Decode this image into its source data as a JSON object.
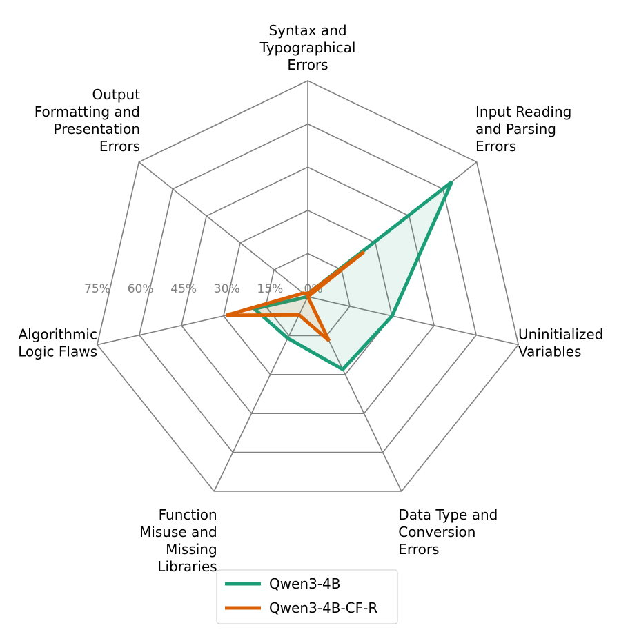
{
  "chart_data": {
    "type": "radar",
    "axes": [
      [
        "Syntax and",
        "Typographical",
        "Errors"
      ],
      [
        "Input Reading",
        "and Parsing",
        "Errors"
      ],
      [
        "Uninitialized",
        "Variables"
      ],
      [
        "Data Type and",
        "Conversion",
        "Errors"
      ],
      [
        "Function",
        "Misuse and",
        "Missing",
        "Libraries"
      ],
      [
        "Algorithmic",
        "Logic Flaws"
      ],
      [
        "Output",
        "Formatting and",
        "Presentation",
        "Errors"
      ]
    ],
    "rlim": [
      0,
      75
    ],
    "ticks": [
      0,
      15,
      30,
      45,
      60,
      75
    ],
    "tick_labels": [
      "0%",
      "15%",
      "30%",
      "45%",
      "60%",
      "75%"
    ],
    "series": [
      {
        "name": "Qwen3-4B",
        "color": "#1b9e77",
        "values": [
          1,
          64,
          30,
          28,
          16,
          19,
          0
        ]
      },
      {
        "name": "Qwen3-4B-CF-R",
        "color": "#d95f02",
        "values": [
          1,
          25,
          0,
          17,
          7,
          29,
          2
        ]
      }
    ],
    "legend": "bottom-center",
    "grid": true
  }
}
